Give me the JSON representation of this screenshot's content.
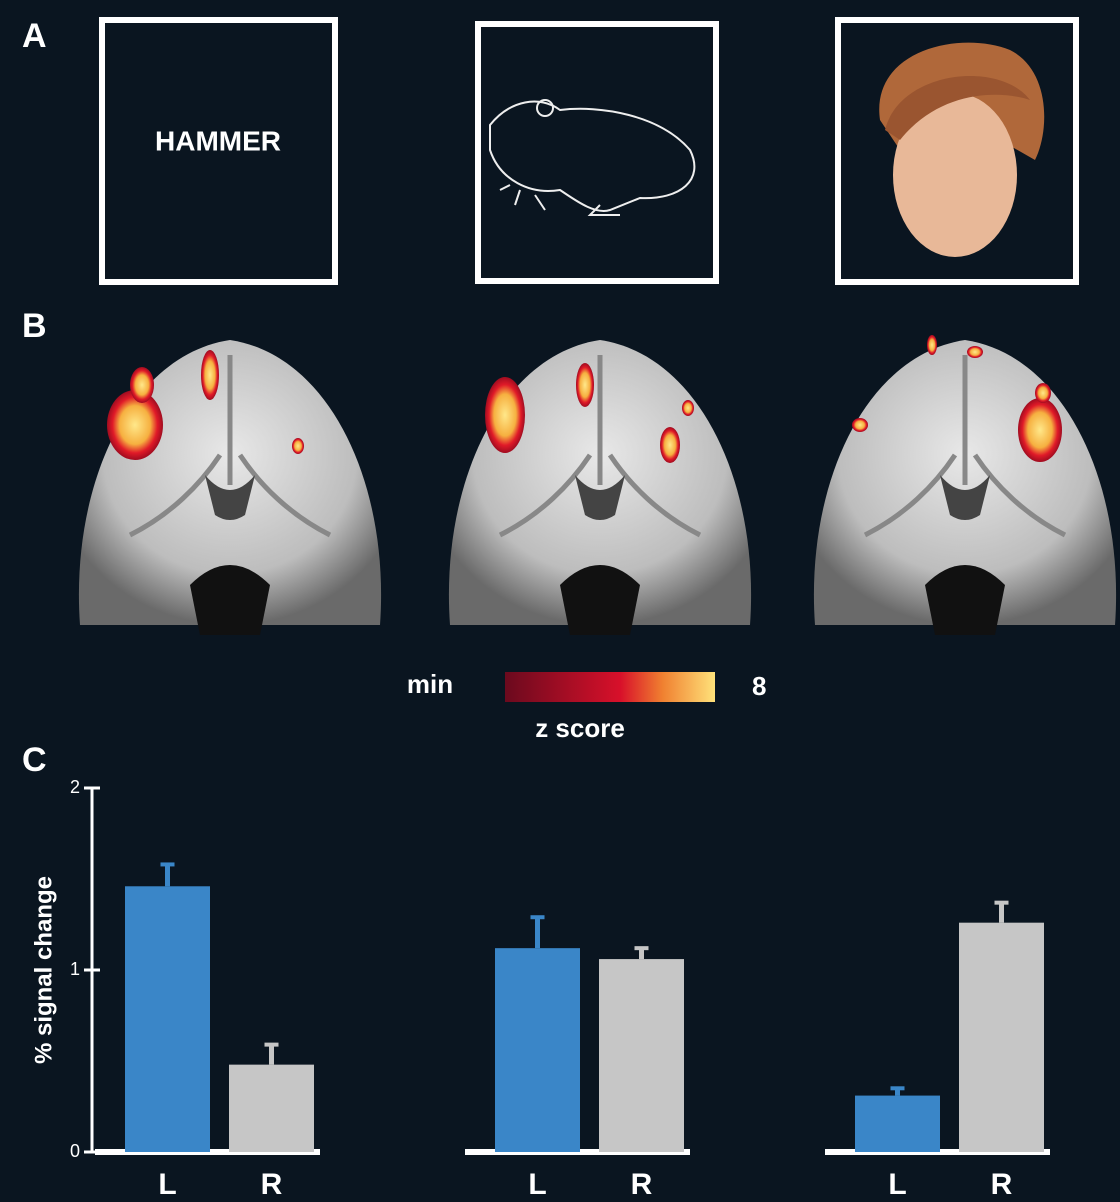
{
  "panel_labels": [
    "A",
    "B",
    "C"
  ],
  "stimulus_word": "HAMMER",
  "colorbar": {
    "min_label": "min",
    "max": 8,
    "title": "z score"
  },
  "chart_data": [
    {
      "type": "bar",
      "ylabel": "% signal change",
      "categories": [
        "L",
        "R"
      ],
      "values": [
        1.46,
        0.48
      ],
      "errors": [
        0.12,
        0.11
      ],
      "colors": [
        "#3a86c8",
        "#c6c6c6"
      ],
      "ylim": [
        0,
        2
      ],
      "yticks": [
        0,
        1,
        2
      ]
    },
    {
      "type": "bar",
      "categories": [
        "L",
        "R"
      ],
      "values": [
        1.12,
        1.06
      ],
      "errors": [
        0.17,
        0.06
      ],
      "colors": [
        "#3a86c8",
        "#c6c6c6"
      ],
      "ylim": [
        0,
        2
      ]
    },
    {
      "type": "bar",
      "categories": [
        "L",
        "R"
      ],
      "values": [
        0.31,
        1.26
      ],
      "errors": [
        0.04,
        0.11
      ],
      "colors": [
        "#3a86c8",
        "#c6c6c6"
      ],
      "ylim": [
        0,
        2
      ]
    }
  ]
}
